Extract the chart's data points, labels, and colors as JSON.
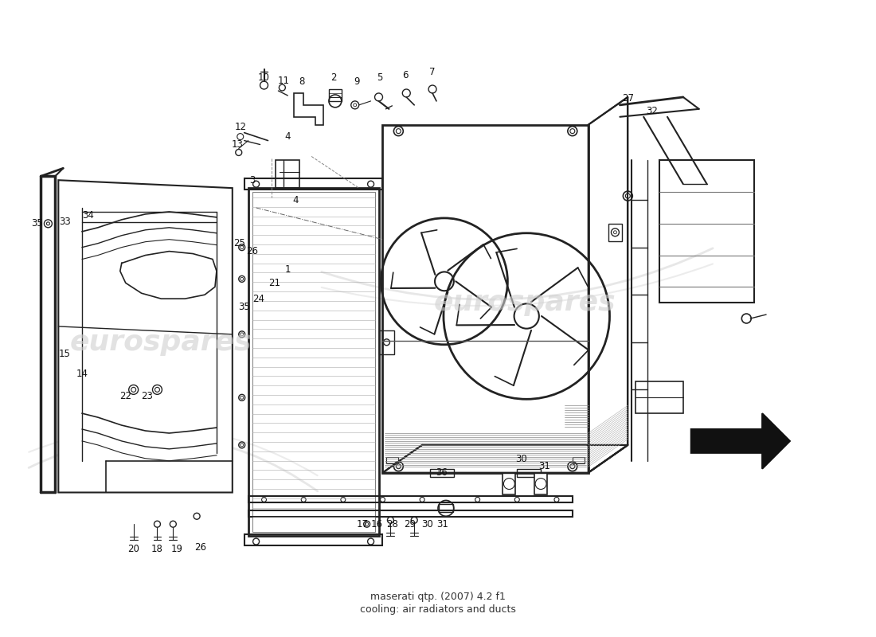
{
  "title": "maserati qtp. (2007) 4.2 f1\ncooling: air radiators and ducts",
  "bg_color": "#ffffff",
  "line_color": "#222222",
  "watermark_color": "#d0d0d0",
  "watermark_text": "eurospares"
}
